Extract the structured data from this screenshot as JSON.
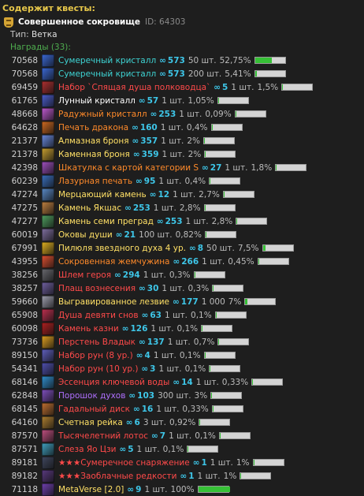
{
  "header": "Содержит квесты:",
  "quest": {
    "icon": "quest-scroll-icon",
    "name": "Совершенное сокровище",
    "id_label": "ID: 64303"
  },
  "type_label": "Тип:",
  "type_value": "Ветка",
  "rewards_label": "Награды (33):",
  "colors": {
    "cyan": "#3ed4d4",
    "white": "#ffffff",
    "red": "#ff4a4a",
    "orange": "#ff8a2a",
    "yellow": "#ffe066",
    "purple": "#b070ff",
    "progress": "#36c036"
  },
  "rewards": [
    {
      "id": "70568",
      "name": "Сумеречный кристалл",
      "color": "cyan",
      "icon_color": "#3b6ad8",
      "chain": "573",
      "qty": "50 шт.",
      "pct": "52,75%",
      "fill": 0.5275
    },
    {
      "id": "70568",
      "name": "Сумеречный кристалл",
      "color": "cyan",
      "icon_color": "#3b6ad8",
      "chain": "573",
      "qty": "200 шт.",
      "pct": "5,41%",
      "fill": 0.0541
    },
    {
      "id": "69459",
      "name": "Набор `Спящая душа полководца`",
      "color": "red",
      "icon_color": "#b03030",
      "chain": "5",
      "qty": "1 шт.",
      "pct": "1,5%",
      "fill": 0.015
    },
    {
      "id": "61765",
      "name": "Лунный кристалл",
      "color": "white",
      "icon_color": "#4c5fd0",
      "chain": "57",
      "qty": "1 шт.",
      "pct": "1,05%",
      "fill": 0.0105
    },
    {
      "id": "48668",
      "name": "Радужный кристалл",
      "color": "orange",
      "icon_color": "#c05ad0",
      "chain": "253",
      "qty": "1 шт.",
      "pct": "0,09%",
      "fill": 0.0009
    },
    {
      "id": "64628",
      "name": "Печать дракона",
      "color": "orange",
      "icon_color": "#d06a20",
      "chain": "160",
      "qty": "1 шт.",
      "pct": "0,4%",
      "fill": 0.004
    },
    {
      "id": "21377",
      "name": "Алмазная броня",
      "color": "yellow",
      "icon_color": "#6a8ae0",
      "chain": "357",
      "qty": "1 шт.",
      "pct": "2%",
      "fill": 0.02
    },
    {
      "id": "21378",
      "name": "Каменная броня",
      "color": "yellow",
      "icon_color": "#c9a030",
      "chain": "359",
      "qty": "1 шт.",
      "pct": "2%",
      "fill": 0.02
    },
    {
      "id": "42398",
      "name": "Шкатулка с картой категории S",
      "color": "orange",
      "icon_color": "#a050c0",
      "chain": "27",
      "qty": "1 шт.",
      "pct": "1,8%",
      "fill": 0.018
    },
    {
      "id": "60239",
      "name": "Лазурная печать",
      "color": "orange",
      "icon_color": "#3a70c0",
      "chain": "95",
      "qty": "1 шт.",
      "pct": "0,4%",
      "fill": 0.004
    },
    {
      "id": "47274",
      "name": "Мерцающий камень",
      "color": "yellow",
      "icon_color": "#5a8ac8",
      "chain": "12",
      "qty": "1 шт.",
      "pct": "2,7%",
      "fill": 0.027
    },
    {
      "id": "47275",
      "name": "Камень Якшас",
      "color": "yellow",
      "icon_color": "#c08040",
      "chain": "253",
      "qty": "1 шт.",
      "pct": "2,8%",
      "fill": 0.028
    },
    {
      "id": "47277",
      "name": "Камень семи преград",
      "color": "yellow",
      "icon_color": "#50a060",
      "chain": "253",
      "qty": "1 шт.",
      "pct": "2,8%",
      "fill": 0.028
    },
    {
      "id": "60019",
      "name": "Оковы души",
      "color": "yellow",
      "icon_color": "#8070a0",
      "chain": "21",
      "qty": "100 шт.",
      "pct": "0,82%",
      "fill": 0.0082
    },
    {
      "id": "67991",
      "name": "Пилюля звездного духа 4 ур.",
      "color": "yellow",
      "icon_color": "#e0b020",
      "chain": "8",
      "qty": "50 шт.",
      "pct": "7,5%",
      "fill": 0.075
    },
    {
      "id": "43955",
      "name": "Сокровенная жемчужина",
      "color": "orange",
      "icon_color": "#e05030",
      "chain": "266",
      "qty": "1 шт.",
      "pct": "0,45%",
      "fill": 0.0045
    },
    {
      "id": "38256",
      "name": "Шлем героя",
      "color": "red",
      "icon_color": "#6a6a70",
      "chain": "294",
      "qty": "1 шт.",
      "pct": "0,3%",
      "fill": 0.003
    },
    {
      "id": "38257",
      "name": "Плащ вознесения",
      "color": "red",
      "icon_color": "#7060a0",
      "chain": "30",
      "qty": "1 шт.",
      "pct": "0,3%",
      "fill": 0.003
    },
    {
      "id": "59660",
      "name": "Выгравированное лезвие",
      "color": "yellow",
      "icon_color": "#a0a0b0",
      "chain": "177",
      "qty": "1 000",
      "pct": "7%",
      "fill": 0.07
    },
    {
      "id": "65908",
      "name": "Душа девяти снов",
      "color": "red",
      "icon_color": "#c03050",
      "chain": "63",
      "qty": "1 шт.",
      "pct": "0,1%",
      "fill": 0.001
    },
    {
      "id": "60098",
      "name": "Камень казни",
      "color": "red",
      "icon_color": "#b02020",
      "chain": "126",
      "qty": "1 шт.",
      "pct": "0,1%",
      "fill": 0.001
    },
    {
      "id": "73736",
      "name": "Перстень Владык",
      "color": "red",
      "icon_color": "#e0a020",
      "chain": "137",
      "qty": "1 шт.",
      "pct": "0,7%",
      "fill": 0.007
    },
    {
      "id": "89150",
      "name": "Набор рун (8 ур.)",
      "color": "red",
      "icon_color": "#6060c0",
      "chain": "4",
      "qty": "1 шт.",
      "pct": "0,1%",
      "fill": 0.001
    },
    {
      "id": "54341",
      "name": "Набор рун (10 ур.)",
      "color": "red",
      "icon_color": "#5050b0",
      "chain": "3",
      "qty": "1 шт.",
      "pct": "0,1%",
      "fill": 0.001
    },
    {
      "id": "68146",
      "name": "Эссенция ключевой воды",
      "color": "red",
      "icon_color": "#3090d0",
      "chain": "14",
      "qty": "1 шт.",
      "pct": "0,33%",
      "fill": 0.0033
    },
    {
      "id": "62848",
      "name": "Порошок духов",
      "color": "purple",
      "icon_color": "#8050c0",
      "chain": "103",
      "qty": "300 шт.",
      "pct": "3%",
      "fill": 0.03
    },
    {
      "id": "68145",
      "name": "Гадальный диск",
      "color": "red",
      "icon_color": "#c07030",
      "chain": "16",
      "qty": "1 шт.",
      "pct": "0,33%",
      "fill": 0.0033
    },
    {
      "id": "64160",
      "name": "Счетная рейка",
      "color": "yellow",
      "icon_color": "#b08030",
      "chain": "6",
      "qty": "3 шт.",
      "pct": "0,92%",
      "fill": 0.0092
    },
    {
      "id": "87570",
      "name": "Тысячелетний лотос",
      "color": "red",
      "icon_color": "#c05080",
      "chain": "7",
      "qty": "1 шт.",
      "pct": "0,1%",
      "fill": 0.001
    },
    {
      "id": "87571",
      "name": "Слеза Яо Цзи",
      "color": "red",
      "icon_color": "#40a0c0",
      "chain": "5",
      "qty": "1 шт.",
      "pct": "0,1%",
      "fill": 0.001
    },
    {
      "id": "89181",
      "name": "★★★Сумеречное снаряжение",
      "color": "red",
      "icon_color": "#404860",
      "chain": "1",
      "qty": "1 шт.",
      "pct": "1%",
      "fill": 0.01
    },
    {
      "id": "89182",
      "name": "★★★Заоблачные редкости",
      "color": "red",
      "icon_color": "#5a3a80",
      "chain": "1",
      "qty": "1 шт.",
      "pct": "1%",
      "fill": 0.01
    },
    {
      "id": "71118",
      "name": "MetaVerse [2.0]",
      "color": "yellow",
      "icon_color": "#7040b0",
      "chain": "9",
      "qty": "1 шт.",
      "pct": "100%",
      "fill": 1.0
    }
  ]
}
